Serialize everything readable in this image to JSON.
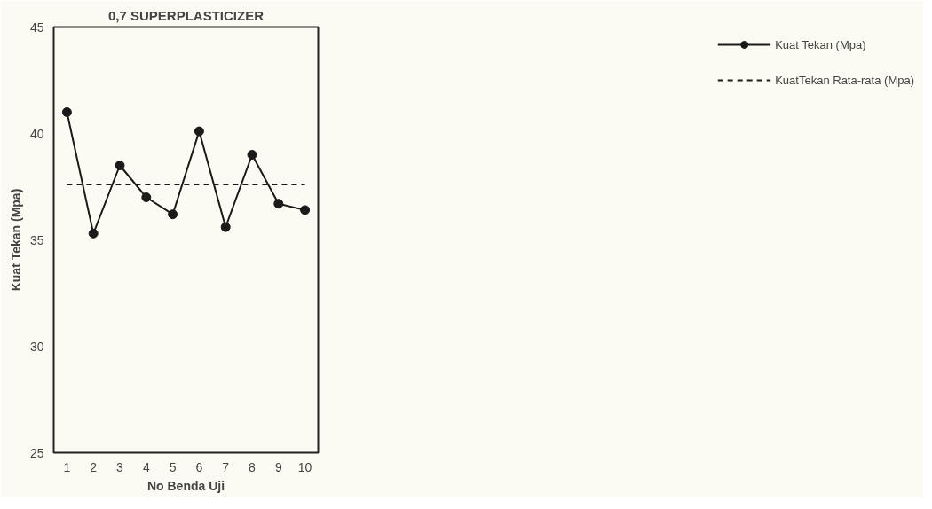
{
  "chart_data": {
    "type": "line",
    "title": "0,7 SUPERPLASTICIZER",
    "xlabel": "No Benda Uji",
    "ylabel": "Kuat Tekan (Mpa)",
    "categories": [
      "1",
      "2",
      "3",
      "4",
      "5",
      "6",
      "7",
      "8",
      "9",
      "10"
    ],
    "ylim": [
      25,
      45
    ],
    "yticks": [
      25,
      30,
      35,
      40,
      45
    ],
    "grid": false,
    "legend": "right",
    "series": [
      {
        "name": "Kuat Tekan (Mpa)",
        "color": "#1a1a1a",
        "marker": "circle",
        "line_style": "solid",
        "values": [
          41.0,
          35.3,
          38.5,
          37.0,
          36.2,
          40.1,
          35.6,
          39.0,
          36.7,
          36.4
        ]
      },
      {
        "name": "KuatTekan Rata-rata (Mpa)",
        "color": "#1a1a1a",
        "marker": "none",
        "line_style": "dashed",
        "values": [
          37.6,
          37.6,
          37.6,
          37.6,
          37.6,
          37.6,
          37.6,
          37.6,
          37.6,
          37.6
        ]
      }
    ]
  }
}
